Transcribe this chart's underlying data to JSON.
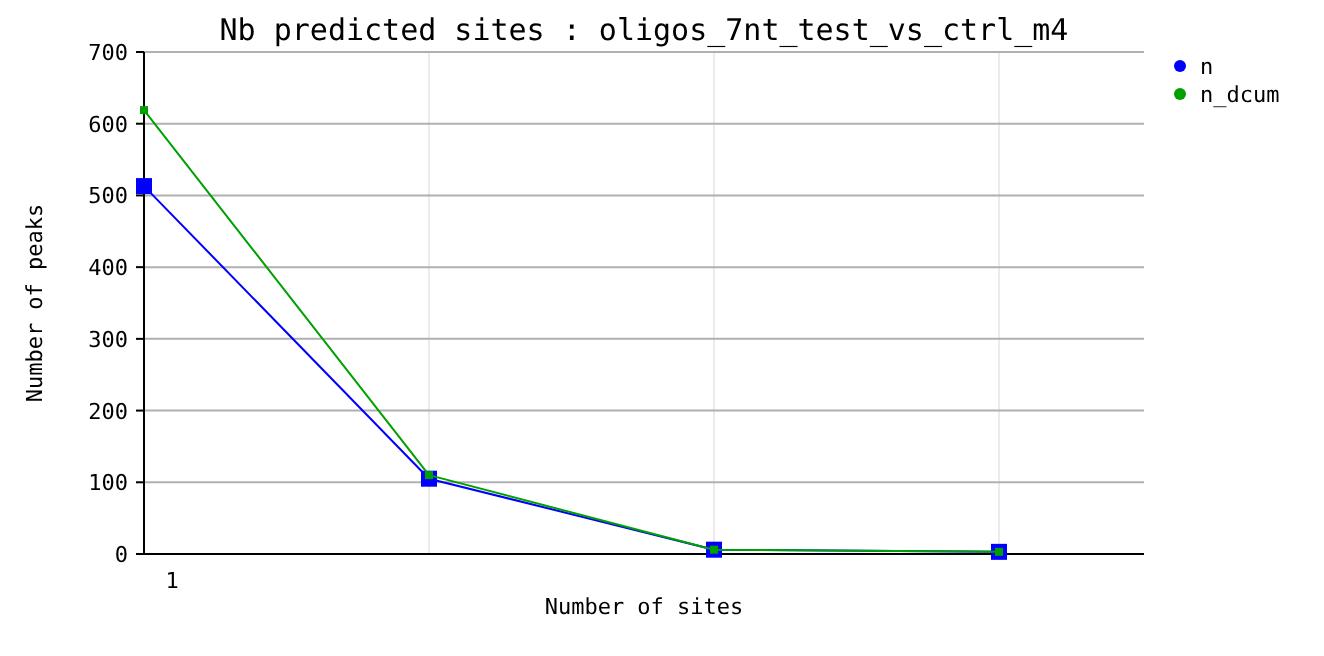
{
  "chart_data": {
    "type": "line",
    "title": "Nb predicted sites : oligos_7nt_test_vs_ctrl_m4",
    "xlabel": "Number of sites",
    "ylabel": "Number of peaks",
    "categories": [
      "1",
      null,
      null,
      null
    ],
    "series": [
      {
        "name": "n",
        "color": "#0000ff",
        "values": [
          513,
          105,
          6,
          3
        ]
      },
      {
        "name": "n_dcum",
        "color": "#00a000",
        "values": [
          619,
          110,
          6,
          3
        ]
      }
    ],
    "ylim": [
      0,
      700
    ],
    "yticks": [
      0,
      100,
      200,
      300,
      400,
      500,
      600,
      700
    ],
    "grid": true,
    "legend": "top right",
    "marker": "square",
    "line_style": "solid"
  }
}
